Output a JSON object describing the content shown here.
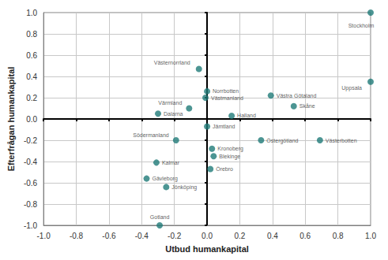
{
  "chart_data": {
    "type": "scatter",
    "x_label": "Utbud humankapital",
    "y_label": "Efterfrågan humankapital",
    "labels": [
      "Stockholm",
      "Uppsala",
      "Västernorrland",
      "Norrbotten",
      "Västmanland",
      "Västra Götaland",
      "Skåne",
      "Värmland",
      "Halland",
      "Dalarna",
      "Jämtland",
      "Södermanland",
      "Östergötland",
      "Västerbotten",
      "Kronoberg",
      "Blekinge",
      "Kalmar",
      "Örebro",
      "Gävleborg",
      "Jönköping",
      "Gotland"
    ],
    "x": [
      1.0,
      1.0,
      -0.05,
      0.0,
      -0.01,
      0.39,
      0.53,
      -0.11,
      0.15,
      -0.3,
      0.0,
      -0.19,
      0.33,
      0.69,
      0.03,
      0.04,
      -0.31,
      0.02,
      -0.37,
      -0.25,
      -0.29
    ],
    "values": [
      1.0,
      0.35,
      0.47,
      0.26,
      0.2,
      0.22,
      0.12,
      0.1,
      0.03,
      0.05,
      -0.07,
      -0.2,
      -0.2,
      -0.2,
      -0.28,
      -0.35,
      -0.41,
      -0.47,
      -0.56,
      -0.64,
      -1.0
    ],
    "color": "#1f7a78",
    "xlim": [
      -1.0,
      1.0
    ],
    "ylim": [
      -1.0,
      1.0
    ],
    "xticks": [
      {
        "value": -1.0,
        "label": "-1.0"
      },
      {
        "value": -0.8,
        "label": "-0.8"
      },
      {
        "value": -0.6,
        "label": "-0.6"
      },
      {
        "value": -0.4,
        "label": "-0.4"
      },
      {
        "value": -0.2,
        "label": "-0.2"
      },
      {
        "value": 0.0,
        "label": "0.0"
      },
      {
        "value": 0.2,
        "label": "0.2"
      },
      {
        "value": 0.4,
        "label": "0.4"
      },
      {
        "value": 0.6,
        "label": "0.6"
      },
      {
        "value": 0.8,
        "label": "0.8"
      },
      {
        "value": 1.0,
        "label": "1.0"
      }
    ],
    "yticks": [
      {
        "value": -1.0,
        "label": "-1.0"
      },
      {
        "value": -0.8,
        "label": "-0.8"
      },
      {
        "value": -0.6,
        "label": "-0.6"
      },
      {
        "value": -0.4,
        "label": "-0.4"
      },
      {
        "value": -0.2,
        "label": "-0.2"
      },
      {
        "value": 0.0,
        "label": "0.0"
      },
      {
        "value": 0.2,
        "label": "0.2"
      },
      {
        "value": 0.4,
        "label": "0.4"
      },
      {
        "value": 0.6,
        "label": "0.6"
      },
      {
        "value": 0.8,
        "label": "0.8"
      },
      {
        "value": 1.0,
        "label": "1.0"
      }
    ],
    "grid": true
  }
}
